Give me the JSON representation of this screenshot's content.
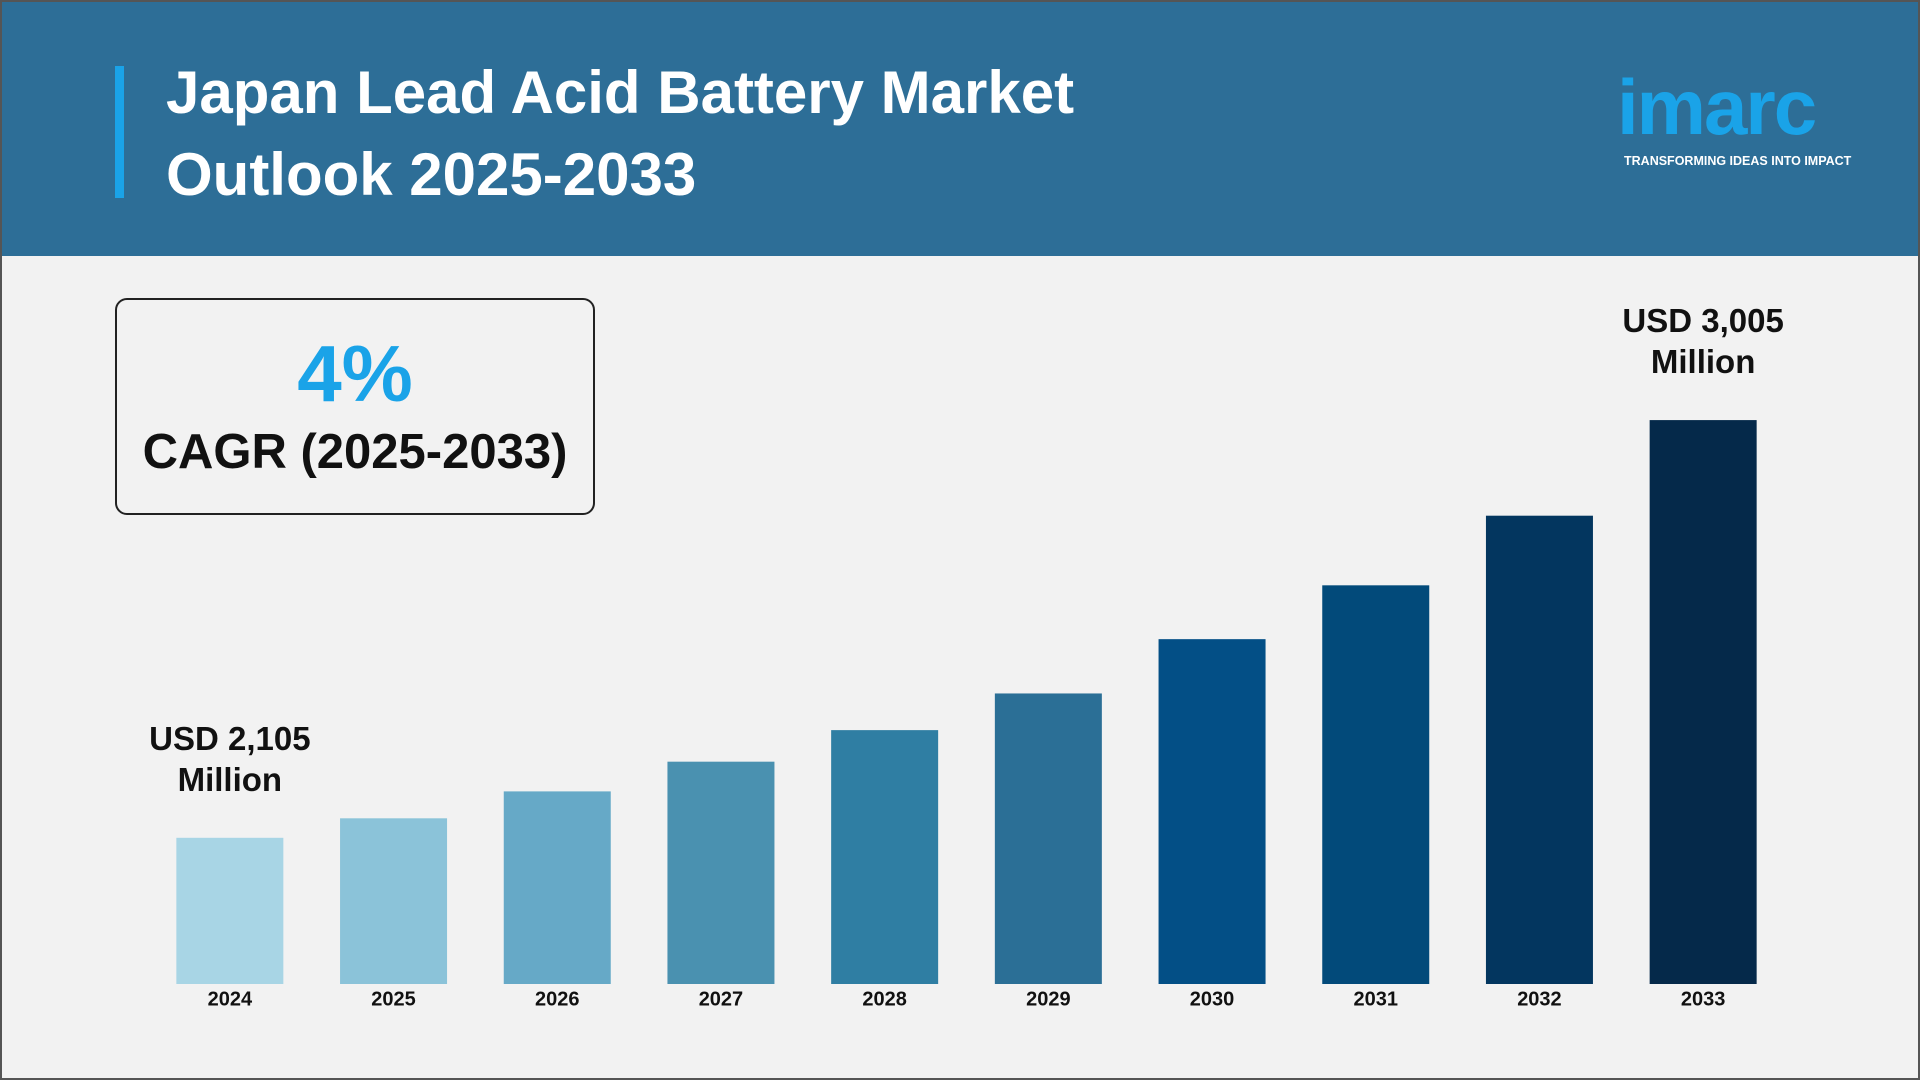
{
  "header": {
    "title": "Japan Lead Acid Battery Market Outlook 2025-2033",
    "logo": "imarc",
    "tagline": "TRANSFORMING IDEAS INTO IMPACT"
  },
  "cagr_box": {
    "value": "4%",
    "label": "CAGR (2025-2033)"
  },
  "chart_data": {
    "type": "bar",
    "categories": [
      "2024",
      "2025",
      "2026",
      "2027",
      "2028",
      "2029",
      "2030",
      "2031",
      "2032",
      "2033"
    ],
    "values": [
      2105,
      2147,
      2205,
      2269,
      2337,
      2416,
      2533,
      2649,
      2799,
      3005
    ],
    "value_labels": [
      "USD 2,105 Million",
      null,
      null,
      null,
      null,
      null,
      null,
      null,
      null,
      "USD 3,005 Million"
    ],
    "colors": [
      "#a8d5e5",
      "#8bc3d9",
      "#66a9c7",
      "#4a91b0",
      "#2f7ea3",
      "#2b6f96",
      "#034f86",
      "#024a7a",
      "#03365f",
      "#05294a"
    ],
    "ylim": [
      1790,
      3100
    ]
  }
}
